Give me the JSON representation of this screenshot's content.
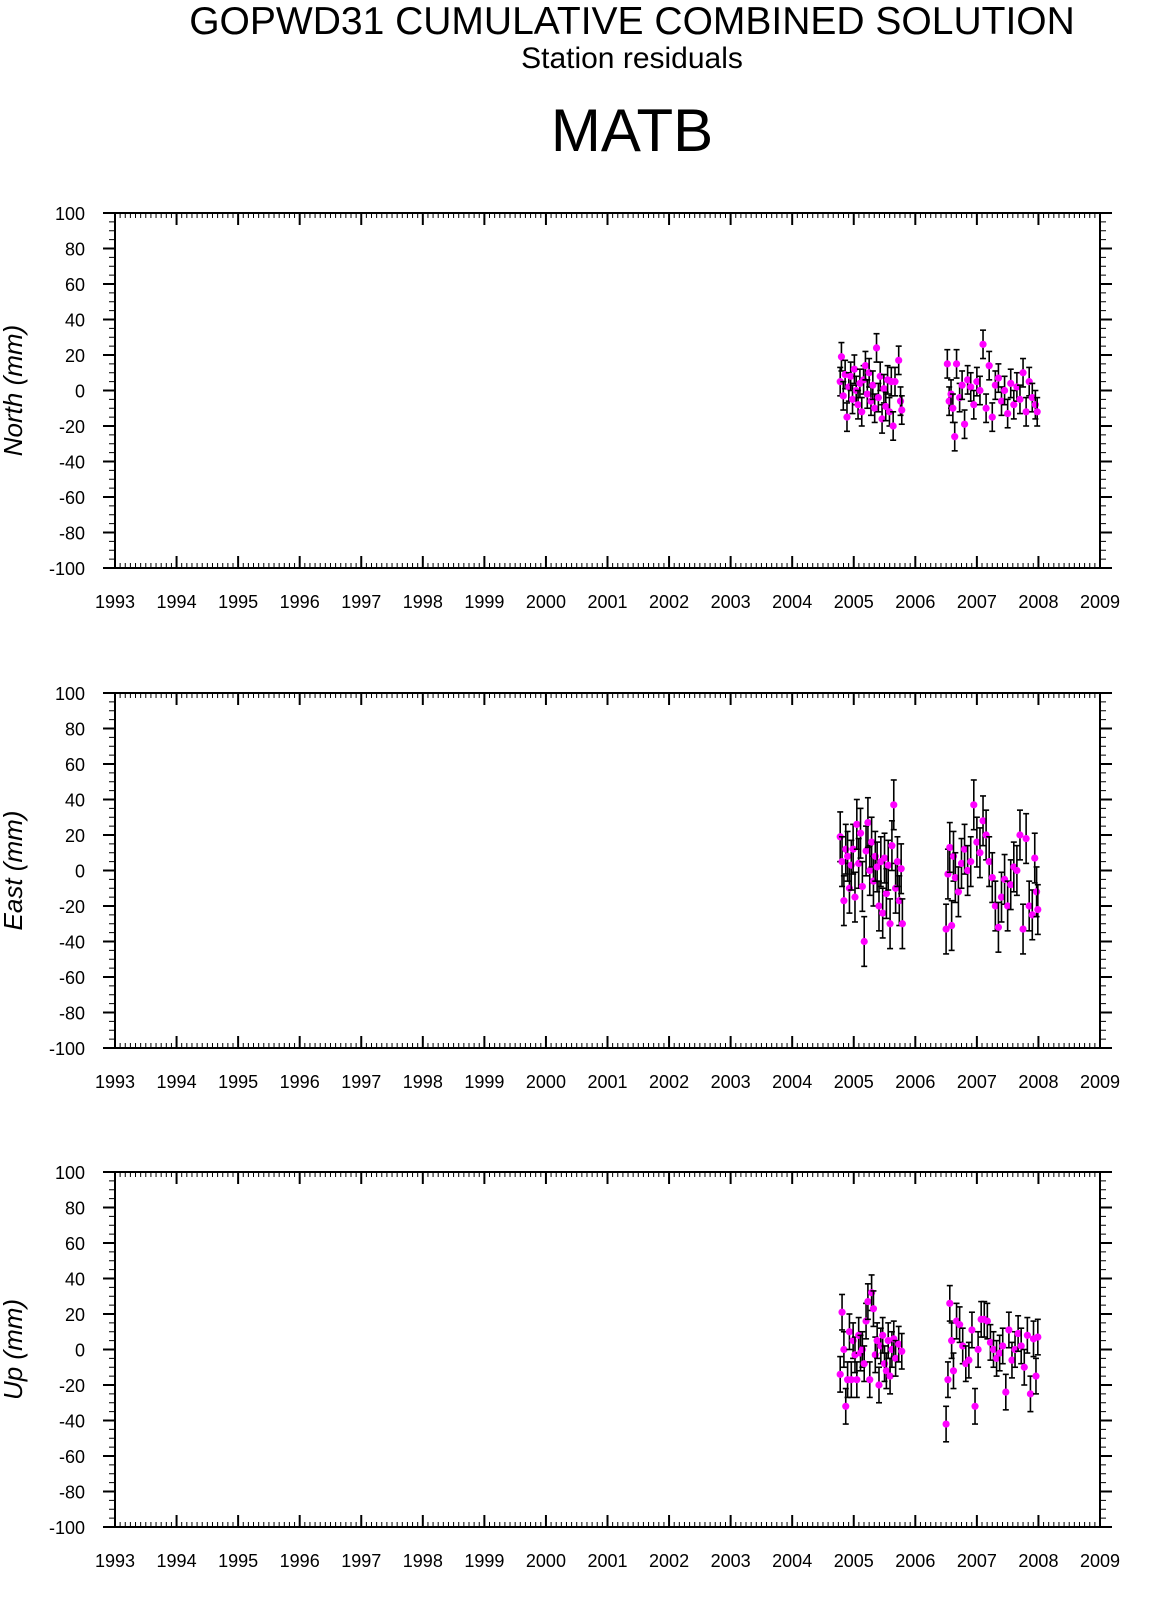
{
  "header": {
    "title": "GOPWD31 CUMULATIVE COMBINED SOLUTION",
    "subtitle": "Station residuals",
    "station": "MATB"
  },
  "colors": {
    "point": "#ff00ff",
    "errorbar": "#000000",
    "axis": "#000000"
  },
  "chart_data": [
    {
      "type": "scatter",
      "ylabel": "North (mm)",
      "xlim": [
        1993,
        2009
      ],
      "ylim": [
        -100,
        100
      ],
      "x_ticks": [
        "1993",
        "1994",
        "1995",
        "1996",
        "1997",
        "1998",
        "1999",
        "2000",
        "2001",
        "2002",
        "2003",
        "2004",
        "2005",
        "2006",
        "2007",
        "2008",
        "2009"
      ],
      "y_ticks": [
        "100",
        "80",
        "60",
        "40",
        "20",
        "0",
        "-20",
        "-40",
        "-60",
        "-80",
        "-100"
      ],
      "series": [
        {
          "error": 8,
          "points": [
            [
              2004.78,
              5
            ],
            [
              2004.8,
              19
            ],
            [
              2004.83,
              -3
            ],
            [
              2004.86,
              9
            ],
            [
              2004.89,
              -15
            ],
            [
              2004.92,
              2
            ],
            [
              2004.95,
              8
            ],
            [
              2004.98,
              -5
            ],
            [
              2005.01,
              12
            ],
            [
              2005.04,
              0
            ],
            [
              2005.07,
              -8
            ],
            [
              2005.1,
              4
            ],
            [
              2005.13,
              -12
            ],
            [
              2005.16,
              6
            ],
            [
              2005.19,
              14
            ],
            [
              2005.22,
              -2
            ],
            [
              2005.25,
              10
            ],
            [
              2005.28,
              -6
            ],
            [
              2005.31,
              3
            ],
            [
              2005.34,
              -10
            ],
            [
              2005.37,
              24
            ],
            [
              2005.4,
              -4
            ],
            [
              2005.43,
              8
            ],
            [
              2005.46,
              -16
            ],
            [
              2005.49,
              1
            ],
            [
              2005.52,
              -9
            ],
            [
              2005.55,
              6
            ],
            [
              2005.58,
              -12
            ],
            [
              2005.61,
              5
            ],
            [
              2005.64,
              -20
            ],
            [
              2005.67,
              5
            ],
            [
              2005.73,
              17
            ],
            [
              2005.76,
              -6
            ],
            [
              2005.78,
              -11
            ],
            [
              2006.52,
              15
            ],
            [
              2006.55,
              -6
            ],
            [
              2006.58,
              -2
            ],
            [
              2006.61,
              -10
            ],
            [
              2006.64,
              -26
            ],
            [
              2006.67,
              15
            ],
            [
              2006.72,
              -4
            ],
            [
              2006.76,
              3
            ],
            [
              2006.8,
              -19
            ],
            [
              2006.85,
              6
            ],
            [
              2006.9,
              2
            ],
            [
              2006.95,
              -8
            ],
            [
              2007.0,
              5
            ],
            [
              2007.05,
              0
            ],
            [
              2007.1,
              26
            ],
            [
              2007.15,
              -10
            ],
            [
              2007.2,
              14
            ],
            [
              2007.25,
              -15
            ],
            [
              2007.3,
              3
            ],
            [
              2007.35,
              7
            ],
            [
              2007.4,
              -6
            ],
            [
              2007.45,
              0
            ],
            [
              2007.5,
              -13
            ],
            [
              2007.55,
              4
            ],
            [
              2007.6,
              -8
            ],
            [
              2007.65,
              2
            ],
            [
              2007.7,
              -5
            ],
            [
              2007.75,
              10
            ],
            [
              2007.8,
              -12
            ],
            [
              2007.85,
              5
            ],
            [
              2007.9,
              -4
            ],
            [
              2007.95,
              -8
            ],
            [
              2007.98,
              -12
            ]
          ]
        }
      ]
    },
    {
      "type": "scatter",
      "ylabel": "East (mm)",
      "xlim": [
        1993,
        2009
      ],
      "ylim": [
        -100,
        100
      ],
      "x_ticks": [
        "1993",
        "1994",
        "1995",
        "1996",
        "1997",
        "1998",
        "1999",
        "2000",
        "2001",
        "2002",
        "2003",
        "2004",
        "2005",
        "2006",
        "2007",
        "2008",
        "2009"
      ],
      "y_ticks": [
        "100",
        "80",
        "60",
        "40",
        "20",
        "0",
        "-20",
        "-40",
        "-60",
        "-80",
        "-100"
      ],
      "series": [
        {
          "error": 14,
          "points": [
            [
              2004.78,
              19
            ],
            [
              2004.81,
              5
            ],
            [
              2004.84,
              -17
            ],
            [
              2004.87,
              12
            ],
            [
              2004.9,
              8
            ],
            [
              2004.93,
              -10
            ],
            [
              2004.96,
              3
            ],
            [
              2004.99,
              12
            ],
            [
              2005.02,
              -15
            ],
            [
              2005.05,
              26
            ],
            [
              2005.08,
              4
            ],
            [
              2005.11,
              21
            ],
            [
              2005.14,
              -9
            ],
            [
              2005.17,
              -40
            ],
            [
              2005.2,
              11
            ],
            [
              2005.23,
              27
            ],
            [
              2005.26,
              0
            ],
            [
              2005.29,
              16
            ],
            [
              2005.32,
              -6
            ],
            [
              2005.35,
              8
            ],
            [
              2005.38,
              2
            ],
            [
              2005.41,
              -20
            ],
            [
              2005.44,
              5
            ],
            [
              2005.47,
              -24
            ],
            [
              2005.5,
              7
            ],
            [
              2005.53,
              -13
            ],
            [
              2005.56,
              3
            ],
            [
              2005.59,
              -30
            ],
            [
              2005.62,
              14
            ],
            [
              2005.65,
              37
            ],
            [
              2005.68,
              -10
            ],
            [
              2005.71,
              5
            ],
            [
              2005.74,
              -17
            ],
            [
              2005.77,
              1
            ],
            [
              2005.79,
              -30
            ],
            [
              2006.5,
              -33
            ],
            [
              2006.53,
              -2
            ],
            [
              2006.56,
              13
            ],
            [
              2006.59,
              -31
            ],
            [
              2006.62,
              8
            ],
            [
              2006.65,
              -4
            ],
            [
              2006.7,
              -12
            ],
            [
              2006.75,
              4
            ],
            [
              2006.8,
              12
            ],
            [
              2006.85,
              0
            ],
            [
              2006.9,
              5
            ],
            [
              2006.95,
              37
            ],
            [
              2007.0,
              16
            ],
            [
              2007.05,
              10
            ],
            [
              2007.1,
              28
            ],
            [
              2007.15,
              20
            ],
            [
              2007.2,
              5
            ],
            [
              2007.25,
              -4
            ],
            [
              2007.3,
              -20
            ],
            [
              2007.35,
              -32
            ],
            [
              2007.4,
              -15
            ],
            [
              2007.45,
              -5
            ],
            [
              2007.5,
              -20
            ],
            [
              2007.55,
              -8
            ],
            [
              2007.6,
              2
            ],
            [
              2007.65,
              0
            ],
            [
              2007.7,
              20
            ],
            [
              2007.75,
              -33
            ],
            [
              2007.8,
              18
            ],
            [
              2007.85,
              -20
            ],
            [
              2007.9,
              -25
            ],
            [
              2007.94,
              7
            ],
            [
              2007.97,
              -12
            ],
            [
              2007.99,
              -22
            ]
          ]
        }
      ]
    },
    {
      "type": "scatter",
      "ylabel": "Up (mm)",
      "xlim": [
        1993,
        2009
      ],
      "ylim": [
        -100,
        100
      ],
      "x_ticks": [
        "1993",
        "1994",
        "1995",
        "1996",
        "1997",
        "1998",
        "1999",
        "2000",
        "2001",
        "2002",
        "2003",
        "2004",
        "2005",
        "2006",
        "2007",
        "2008",
        "2009"
      ],
      "y_ticks": [
        "100",
        "80",
        "60",
        "40",
        "20",
        "0",
        "-20",
        "-40",
        "-60",
        "-80",
        "-100"
      ],
      "series": [
        {
          "error": 10,
          "points": [
            [
              2004.78,
              -14
            ],
            [
              2004.81,
              21
            ],
            [
              2004.84,
              0
            ],
            [
              2004.87,
              -32
            ],
            [
              2004.9,
              -17
            ],
            [
              2004.93,
              10
            ],
            [
              2004.96,
              -17
            ],
            [
              2004.99,
              5
            ],
            [
              2005.02,
              -3
            ],
            [
              2005.05,
              -17
            ],
            [
              2005.08,
              8
            ],
            [
              2005.11,
              -2
            ],
            [
              2005.14,
              0
            ],
            [
              2005.17,
              -8
            ],
            [
              2005.2,
              16
            ],
            [
              2005.23,
              27
            ],
            [
              2005.26,
              -17
            ],
            [
              2005.29,
              32
            ],
            [
              2005.32,
              23
            ],
            [
              2005.35,
              -3
            ],
            [
              2005.38,
              5
            ],
            [
              2005.41,
              -20
            ],
            [
              2005.44,
              2
            ],
            [
              2005.47,
              8
            ],
            [
              2005.5,
              -8
            ],
            [
              2005.53,
              -12
            ],
            [
              2005.56,
              5
            ],
            [
              2005.59,
              -15
            ],
            [
              2005.62,
              0
            ],
            [
              2005.65,
              6
            ],
            [
              2005.68,
              -5
            ],
            [
              2005.73,
              3
            ],
            [
              2005.78,
              -1
            ],
            [
              2006.5,
              -42
            ],
            [
              2006.53,
              -17
            ],
            [
              2006.56,
              26
            ],
            [
              2006.59,
              5
            ],
            [
              2006.62,
              -12
            ],
            [
              2006.67,
              16
            ],
            [
              2006.72,
              14
            ],
            [
              2006.77,
              2
            ],
            [
              2006.82,
              -8
            ],
            [
              2006.87,
              -6
            ],
            [
              2006.92,
              11
            ],
            [
              2006.97,
              -32
            ],
            [
              2007.02,
              0
            ],
            [
              2007.07,
              17
            ],
            [
              2007.12,
              17
            ],
            [
              2007.17,
              16
            ],
            [
              2007.22,
              4
            ],
            [
              2007.27,
              0
            ],
            [
              2007.32,
              -5
            ],
            [
              2007.37,
              -2
            ],
            [
              2007.42,
              2
            ],
            [
              2007.47,
              -24
            ],
            [
              2007.52,
              11
            ],
            [
              2007.57,
              -6
            ],
            [
              2007.62,
              0
            ],
            [
              2007.67,
              9
            ],
            [
              2007.72,
              2
            ],
            [
              2007.77,
              -10
            ],
            [
              2007.82,
              8
            ],
            [
              2007.87,
              -25
            ],
            [
              2007.92,
              6
            ],
            [
              2007.96,
              -15
            ],
            [
              2007.99,
              7
            ]
          ]
        }
      ]
    }
  ]
}
